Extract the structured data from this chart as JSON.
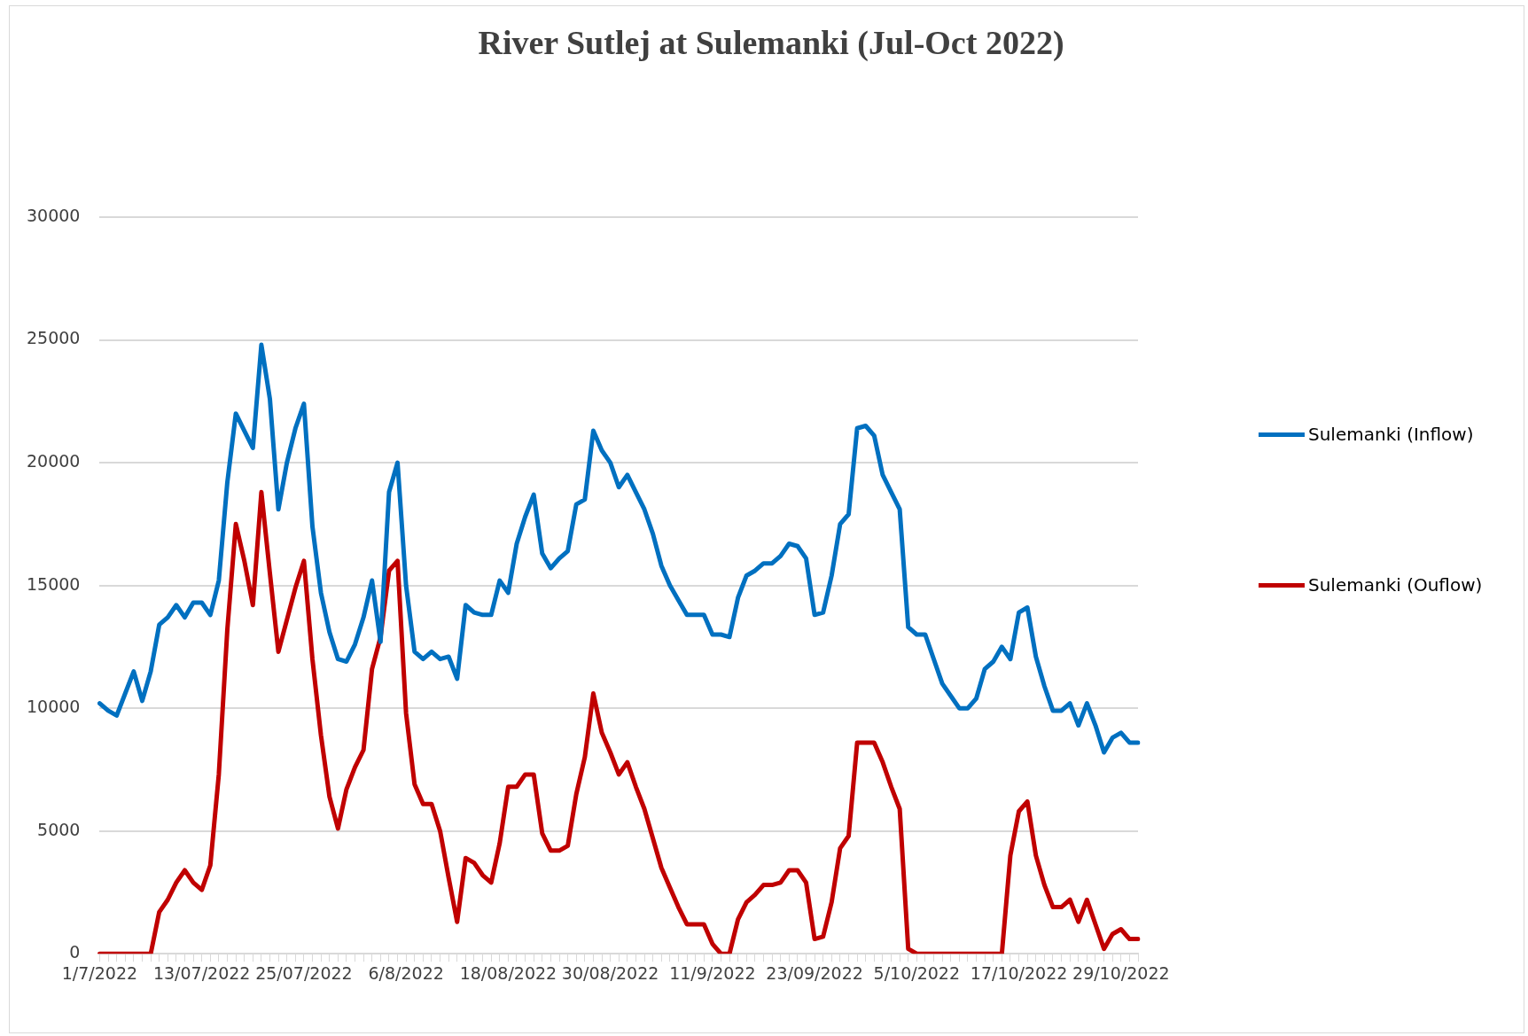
{
  "chart_data": {
    "type": "line",
    "title": "River Sutlej at Sulemanki (Jul-Oct 2022)",
    "categories": [
      "1/7/2022",
      null,
      null,
      null,
      null,
      null,
      null,
      null,
      null,
      null,
      null,
      null,
      "13/07/2022",
      null,
      null,
      null,
      null,
      null,
      null,
      null,
      null,
      null,
      null,
      null,
      "25/07/2022",
      null,
      null,
      null,
      null,
      null,
      null,
      null,
      null,
      null,
      null,
      null,
      "6/8/2022",
      null,
      null,
      null,
      null,
      null,
      null,
      null,
      null,
      null,
      null,
      null,
      "18/08/2022",
      null,
      null,
      null,
      null,
      null,
      null,
      null,
      null,
      null,
      null,
      null,
      "30/08/2022",
      null,
      null,
      null,
      null,
      null,
      null,
      null,
      null,
      null,
      null,
      null,
      "11/9/2022",
      null,
      null,
      null,
      null,
      null,
      null,
      null,
      null,
      null,
      null,
      null,
      "23/09/2022",
      null,
      null,
      null,
      null,
      null,
      null,
      null,
      null,
      null,
      null,
      null,
      "5/10/2022",
      null,
      null,
      null,
      null,
      null,
      null,
      null,
      null,
      null,
      null,
      null,
      "17/10/2022",
      null,
      null,
      null,
      null,
      null,
      null,
      null,
      null,
      null,
      null,
      null,
      "29/10/2022",
      null,
      null
    ],
    "series": [
      {
        "name": "Sulemanki (Inflow)",
        "color": "#0070c0",
        "values": [
          10200,
          9900,
          9700,
          10600,
          11500,
          10300,
          11500,
          13400,
          13700,
          14200,
          13700,
          14300,
          14300,
          13800,
          15200,
          19200,
          22000,
          21300,
          20600,
          24800,
          22600,
          18100,
          20000,
          21400,
          22400,
          17400,
          14700,
          13100,
          12000,
          11900,
          12600,
          13700,
          15200,
          12700,
          18800,
          20000,
          15000,
          12300,
          12000,
          12300,
          12000,
          12100,
          11200,
          14200,
          13900,
          13800,
          13800,
          15200,
          14700,
          16700,
          17800,
          18700,
          16300,
          15700,
          16100,
          16400,
          18300,
          18500,
          21300,
          20500,
          20000,
          19000,
          19500,
          18800,
          18100,
          17100,
          15800,
          15000,
          14400,
          13800,
          13800,
          13800,
          13000,
          13000,
          12900,
          14500,
          15400,
          15600,
          15900,
          15900,
          16200,
          16700,
          16600,
          16100,
          13800,
          13900,
          15400,
          17500,
          17900,
          21400,
          21500,
          21100,
          19500,
          18800,
          18100,
          13300,
          13000,
          13000,
          12000,
          11000,
          10500,
          10000,
          10000,
          10400,
          11600,
          11900,
          12500,
          12000,
          13900,
          14100,
          12100,
          10900,
          9900,
          9900,
          10200,
          9300,
          10200,
          9300,
          8200,
          8800,
          9000,
          8600,
          8600
        ]
      },
      {
        "name": "Sulemanki (Ouflow)",
        "color": "#c00000",
        "values": [
          0,
          0,
          0,
          0,
          0,
          0,
          0,
          1700,
          2200,
          2900,
          3400,
          2900,
          2600,
          3600,
          7300,
          13200,
          17500,
          16000,
          14200,
          18800,
          15500,
          12300,
          13600,
          14900,
          16000,
          12000,
          8900,
          6400,
          5100,
          6700,
          7600,
          8300,
          11600,
          12900,
          15600,
          16000,
          9800,
          6900,
          6100,
          6100,
          5000,
          3100,
          1300,
          3900,
          3700,
          3200,
          2900,
          4500,
          6800,
          6800,
          7300,
          7300,
          4900,
          4200,
          4200,
          4400,
          6500,
          8000,
          10600,
          9000,
          8200,
          7300,
          7800,
          6800,
          5900,
          4700,
          3500,
          2700,
          1900,
          1200,
          1200,
          1200,
          400,
          0,
          0,
          1400,
          2100,
          2400,
          2800,
          2800,
          2900,
          3400,
          3400,
          2900,
          600,
          700,
          2100,
          4300,
          4800,
          8600,
          8600,
          8600,
          7800,
          6800,
          5900,
          200,
          0,
          0,
          0,
          0,
          0,
          0,
          0,
          0,
          0,
          0,
          0,
          4000,
          5800,
          6200,
          4000,
          2800,
          1900,
          1900,
          2200,
          1300,
          2200,
          1200,
          200,
          800,
          1000,
          600,
          600
        ]
      }
    ],
    "ylim": [
      0,
      30000
    ],
    "yticks": [
      0,
      5000,
      10000,
      15000,
      20000,
      25000,
      30000
    ],
    "grid": "y",
    "legend": "right",
    "marker": "none",
    "line_style": "solid"
  }
}
